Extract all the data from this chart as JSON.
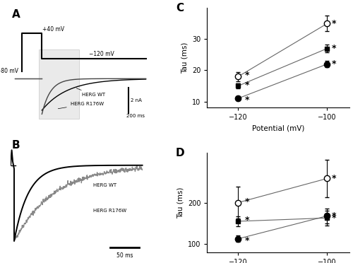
{
  "panel_C": {
    "title": "C",
    "xlabel": "Potential (mV)",
    "ylabel": "Tau (ms)",
    "potentials": [
      -120,
      -100
    ],
    "herg_open": {
      "mean": [
        18.0,
        35.0
      ],
      "err": [
        1.5,
        2.5
      ]
    },
    "herg_sq": {
      "mean": [
        15.0,
        27.0
      ],
      "err": [
        0.8,
        1.2
      ]
    },
    "herg_filled": {
      "mean": [
        11.0,
        22.0
      ],
      "err": [
        0.7,
        1.0
      ]
    },
    "ylim": [
      8,
      40
    ],
    "yticks": [
      10,
      20,
      30
    ]
  },
  "panel_D": {
    "title": "D",
    "xlabel": "Potential (mV)",
    "ylabel": "Tau (ms)",
    "potentials": [
      -120,
      -100
    ],
    "herg_open": {
      "mean": [
        200.0,
        258.0
      ],
      "err": [
        38.0,
        45.0
      ]
    },
    "herg_sq": {
      "mean": [
        155.0,
        163.0
      ],
      "err": [
        12.0,
        18.0
      ]
    },
    "herg_filled": {
      "mean": [
        113.0,
        168.0
      ],
      "err": [
        8.0,
        18.0
      ]
    },
    "ylim": [
      80,
      320
    ],
    "yticks": [
      100,
      200
    ]
  },
  "black_color": "#000000",
  "white_color": "#ffffff"
}
